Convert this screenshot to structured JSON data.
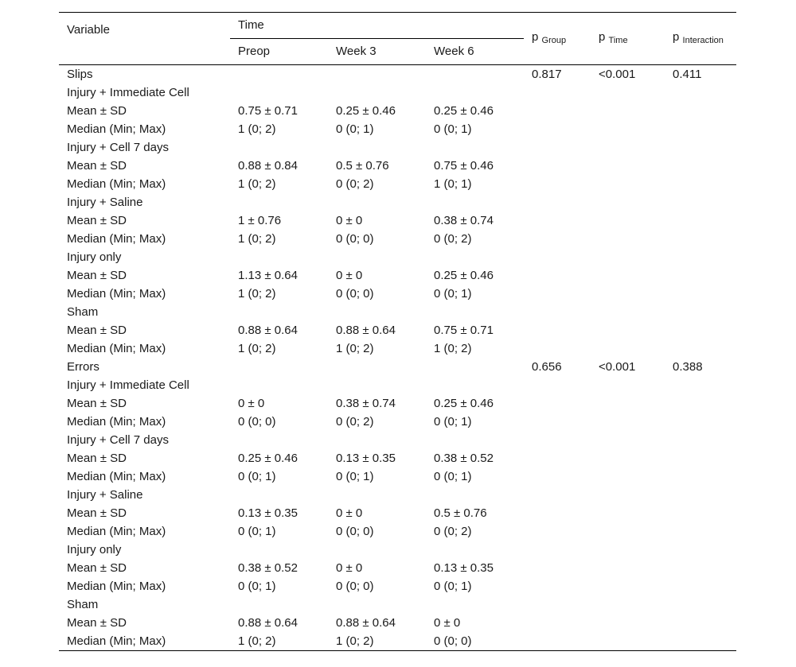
{
  "header": {
    "variable": "Variable",
    "time": "Time",
    "preop": "Preop",
    "week3": "Week 3",
    "week6": "Week 6",
    "p_group": {
      "p": "p",
      "sub": "Group"
    },
    "p_time": {
      "p": "p",
      "sub": "Time"
    },
    "p_interaction": {
      "p": "p",
      "sub": "Interaction"
    }
  },
  "sections": [
    {
      "title": "Slips",
      "p_group": "0.817",
      "p_time": "<0.001",
      "p_interaction": "0.411",
      "groups": [
        {
          "name": "Injury + Immediate Cell",
          "mean": {
            "label": "Mean ± SD",
            "preop": "0.75 ± 0.71",
            "week3": "0.25 ± 0.46",
            "week6": "0.25 ± 0.46"
          },
          "median": {
            "label": "Median (Min; Max)",
            "preop": "1 (0; 2)",
            "week3": "0 (0; 1)",
            "week6": "0 (0; 1)"
          }
        },
        {
          "name": "Injury + Cell 7 days",
          "mean": {
            "label": "Mean ± SD",
            "preop": "0.88 ± 0.84",
            "week3": "0.5 ± 0.76",
            "week6": "0.75 ± 0.46"
          },
          "median": {
            "label": "Median (Min; Max)",
            "preop": "1 (0; 2)",
            "week3": "0 (0; 2)",
            "week6": "1 (0; 1)"
          }
        },
        {
          "name": "Injury + Saline",
          "mean": {
            "label": "Mean ± SD",
            "preop": "1 ± 0.76",
            "week3": "0 ± 0",
            "week6": "0.38 ± 0.74"
          },
          "median": {
            "label": "Median (Min; Max)",
            "preop": "1 (0; 2)",
            "week3": "0 (0; 0)",
            "week6": "0 (0; 2)"
          }
        },
        {
          "name": "Injury only",
          "mean": {
            "label": "Mean ± SD",
            "preop": "1.13 ± 0.64",
            "week3": "0 ± 0",
            "week6": "0.25 ± 0.46"
          },
          "median": {
            "label": "Median (Min; Max)",
            "preop": "1 (0; 2)",
            "week3": "0 (0; 0)",
            "week6": "0 (0; 1)"
          }
        },
        {
          "name": "Sham",
          "mean": {
            "label": "Mean ± SD",
            "preop": "0.88 ± 0.64",
            "week3": "0.88 ± 0.64",
            "week6": "0.75 ± 0.71"
          },
          "median": {
            "label": "Median (Min; Max)",
            "preop": "1 (0; 2)",
            "week3": "1 (0; 2)",
            "week6": "1 (0; 2)"
          }
        }
      ]
    },
    {
      "title": "Errors",
      "p_group": "0.656",
      "p_time": "<0.001",
      "p_interaction": "0.388",
      "groups": [
        {
          "name": "Injury + Immediate Cell",
          "mean": {
            "label": "Mean ± SD",
            "preop": "0 ± 0",
            "week3": "0.38 ± 0.74",
            "week6": "0.25 ± 0.46"
          },
          "median": {
            "label": "Median (Min; Max)",
            "preop": "0 (0; 0)",
            "week3": "0 (0; 2)",
            "week6": "0 (0; 1)"
          }
        },
        {
          "name": "Injury + Cell 7 days",
          "mean": {
            "label": "Mean ± SD",
            "preop": "0.25 ± 0.46",
            "week3": "0.13 ± 0.35",
            "week6": "0.38 ± 0.52"
          },
          "median": {
            "label": "Median (Min; Max)",
            "preop": "0 (0; 1)",
            "week3": "0 (0; 1)",
            "week6": "0 (0; 1)"
          }
        },
        {
          "name": "Injury + Saline",
          "mean": {
            "label": "Mean ± SD",
            "preop": "0.13 ± 0.35",
            "week3": "0 ± 0",
            "week6": "0.5 ± 0.76"
          },
          "median": {
            "label": "Median (Min; Max)",
            "preop": "0 (0; 1)",
            "week3": "0 (0; 0)",
            "week6": "0 (0; 2)"
          }
        },
        {
          "name": "Injury only",
          "mean": {
            "label": "Mean ± SD",
            "preop": "0.38 ± 0.52",
            "week3": "0 ± 0",
            "week6": "0.13 ± 0.35"
          },
          "median": {
            "label": "Median (Min; Max)",
            "preop": "0 (0; 1)",
            "week3": "0 (0; 0)",
            "week6": "0 (0; 1)"
          }
        },
        {
          "name": "Sham",
          "mean": {
            "label": "Mean ± SD",
            "preop": "0.88 ± 0.64",
            "week3": "0.88 ± 0.64",
            "week6": "0 ± 0"
          },
          "median": {
            "label": "Median (Min; Max)",
            "preop": "1 (0; 2)",
            "week3": "1 (0; 2)",
            "week6": "0 (0; 0)"
          }
        }
      ]
    }
  ]
}
